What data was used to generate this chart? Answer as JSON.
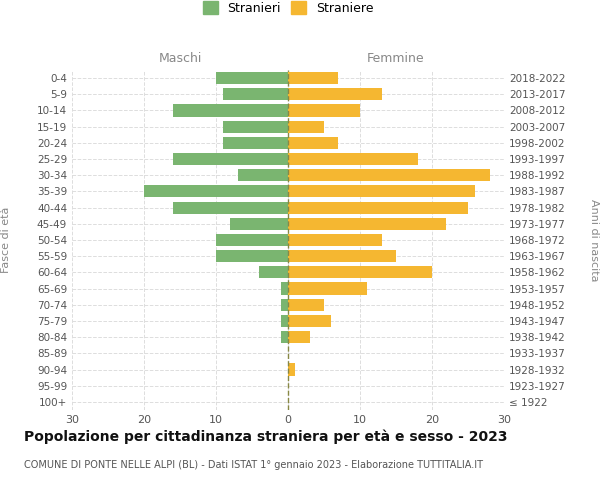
{
  "age_groups": [
    "100+",
    "95-99",
    "90-94",
    "85-89",
    "80-84",
    "75-79",
    "70-74",
    "65-69",
    "60-64",
    "55-59",
    "50-54",
    "45-49",
    "40-44",
    "35-39",
    "30-34",
    "25-29",
    "20-24",
    "15-19",
    "10-14",
    "5-9",
    "0-4"
  ],
  "birth_years": [
    "≤ 1922",
    "1923-1927",
    "1928-1932",
    "1933-1937",
    "1938-1942",
    "1943-1947",
    "1948-1952",
    "1953-1957",
    "1958-1962",
    "1963-1967",
    "1968-1972",
    "1973-1977",
    "1978-1982",
    "1983-1987",
    "1988-1992",
    "1993-1997",
    "1998-2002",
    "2003-2007",
    "2008-2012",
    "2013-2017",
    "2018-2022"
  ],
  "maschi": [
    0,
    0,
    0,
    0,
    1,
    1,
    1,
    1,
    4,
    10,
    10,
    8,
    16,
    20,
    7,
    16,
    9,
    9,
    16,
    9,
    10
  ],
  "femmine": [
    0,
    0,
    1,
    0,
    3,
    6,
    5,
    11,
    20,
    15,
    13,
    22,
    25,
    26,
    28,
    18,
    7,
    5,
    10,
    13,
    7
  ],
  "maschi_color": "#7ab570",
  "femmine_color": "#f5b731",
  "grid_color": "#dddddd",
  "center_line_color": "#888844",
  "title": "Popolazione per cittadinanza straniera per età e sesso - 2023",
  "subtitle": "COMUNE DI PONTE NELLE ALPI (BL) - Dati ISTAT 1° gennaio 2023 - Elaborazione TUTTITALIA.IT",
  "xlabel_left": "Maschi",
  "xlabel_right": "Femmine",
  "ylabel_left": "Fasce di età",
  "ylabel_right": "Anni di nascita",
  "legend_maschi": "Stranieri",
  "legend_femmine": "Straniere",
  "xlim": 30,
  "bar_height": 0.75,
  "tick_label_color": "#555555",
  "title_fontsize": 10,
  "subtitle_fontsize": 7
}
